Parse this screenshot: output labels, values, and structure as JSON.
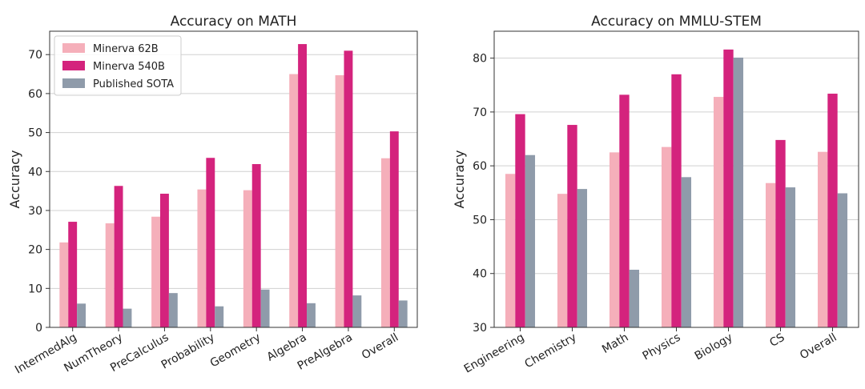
{
  "colors": {
    "Minerva 62B": "#f5afba",
    "Minerva 540B": "#d4237d",
    "Published SOTA": "#8f9baa"
  },
  "chart_data": [
    {
      "type": "bar",
      "title": "Accuracy on MATH",
      "xlabel": "",
      "ylabel": "Accuracy",
      "ylim": [
        0,
        76
      ],
      "yticks": [
        0,
        10,
        20,
        30,
        40,
        50,
        60,
        70
      ],
      "grid": "horizontal",
      "legend_placement": "top-left",
      "categories": [
        "IntermedAlg",
        "NumTheory",
        "PreCalculus",
        "Probability",
        "Geometry",
        "Algebra",
        "PreAlgebra",
        "Overall"
      ],
      "series": [
        {
          "name": "Minerva 62B",
          "values": [
            21.8,
            26.7,
            28.4,
            35.4,
            35.2,
            65.0,
            64.7,
            43.4
          ]
        },
        {
          "name": "Minerva 540B",
          "values": [
            27.1,
            36.3,
            34.3,
            43.5,
            41.9,
            72.7,
            71.0,
            50.3
          ]
        },
        {
          "name": "Published SOTA",
          "values": [
            6.1,
            4.8,
            8.8,
            5.4,
            9.7,
            6.2,
            8.2,
            6.9
          ]
        }
      ]
    },
    {
      "type": "bar",
      "title": "Accuracy on MMLU-STEM",
      "xlabel": "",
      "ylabel": "Accuracy",
      "ylim": [
        30,
        85
      ],
      "yticks": [
        30,
        40,
        50,
        60,
        70,
        80
      ],
      "grid": "horizontal",
      "categories": [
        "Engineering",
        "Chemistry",
        "Math",
        "Physics",
        "Biology",
        "CS",
        "Overall"
      ],
      "series": [
        {
          "name": "Minerva 62B",
          "values": [
            58.5,
            54.8,
            62.5,
            63.5,
            72.8,
            56.8,
            62.6
          ]
        },
        {
          "name": "Minerva 540B",
          "values": [
            69.6,
            67.6,
            73.2,
            77.0,
            81.6,
            64.8,
            73.4
          ]
        },
        {
          "name": "Published SOTA",
          "values": [
            62.0,
            55.7,
            40.7,
            57.9,
            80.1,
            56.0,
            54.9
          ]
        }
      ]
    }
  ]
}
